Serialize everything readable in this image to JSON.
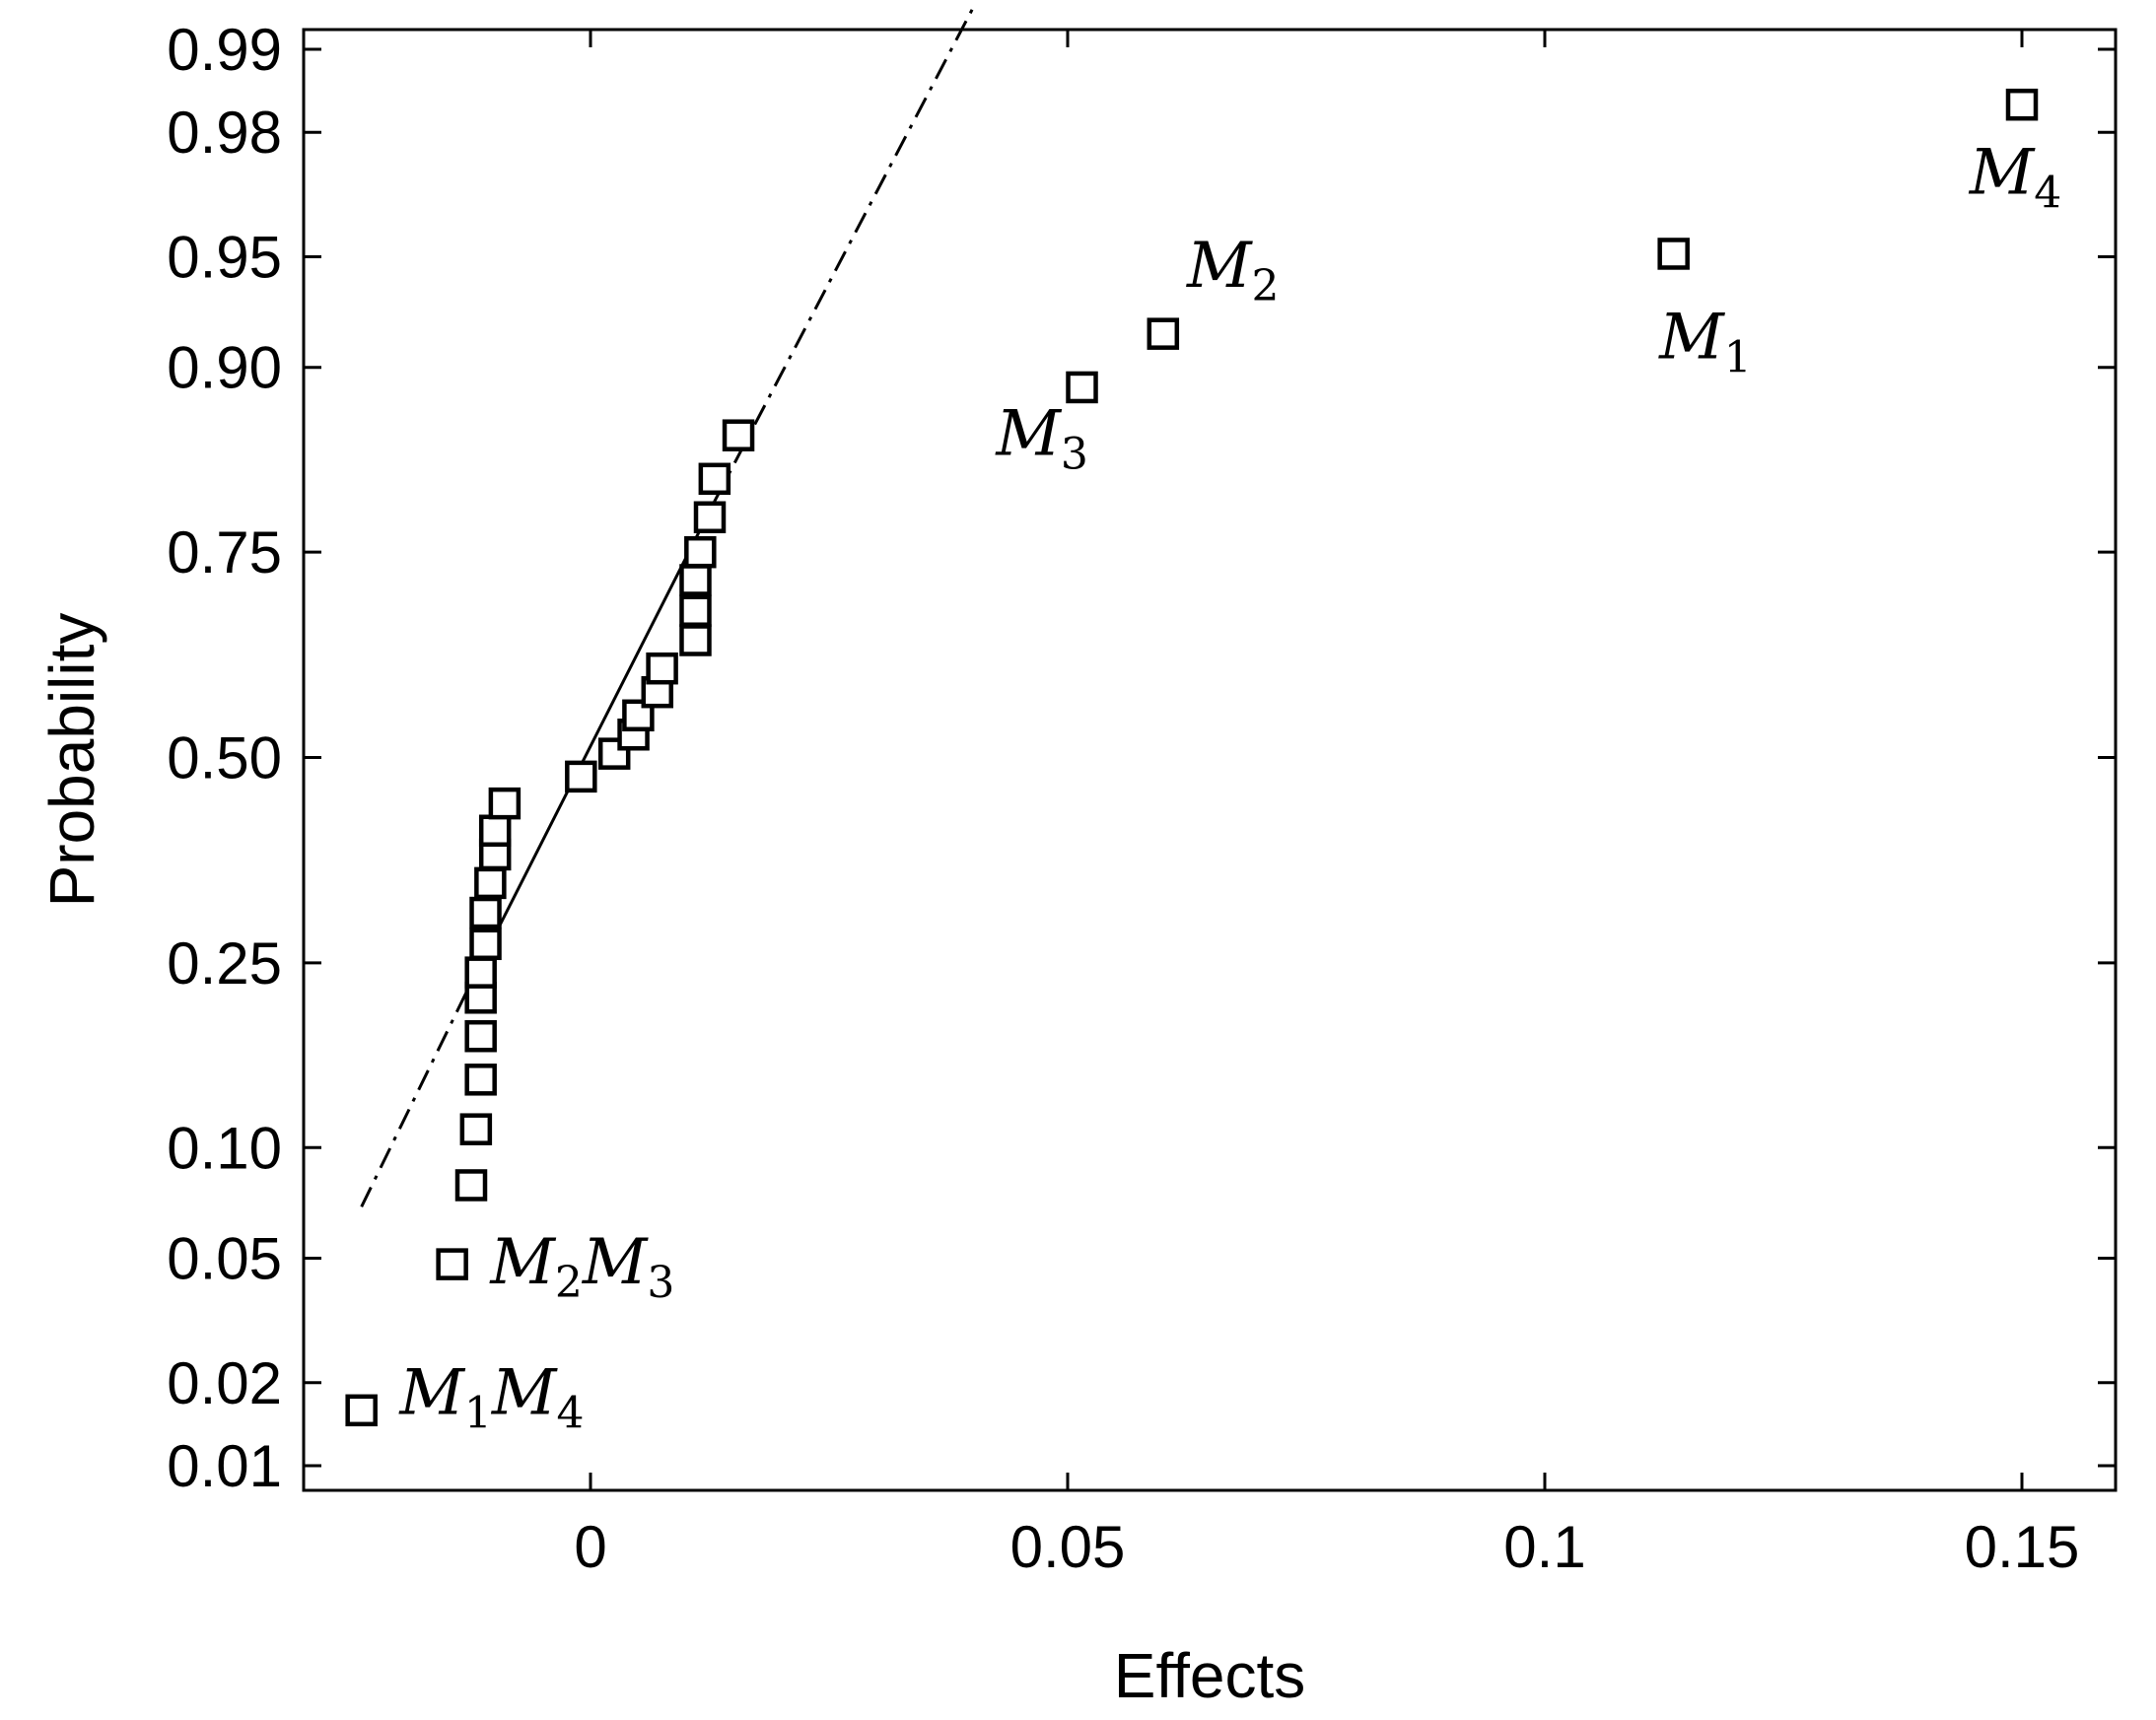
{
  "chart_data": {
    "type": "scatter",
    "title": "",
    "xlabel": "Effects",
    "ylabel": "Probability",
    "xlim": [
      -0.03,
      0.16
    ],
    "xticks": [
      0,
      0.05,
      0.1,
      0.15
    ],
    "xtick_labels": [
      "0",
      "0.05",
      "0.1",
      "0.15"
    ],
    "y_scale": "normal-probability",
    "yticks": [
      0.01,
      0.02,
      0.05,
      0.1,
      0.25,
      0.5,
      0.75,
      0.9,
      0.95,
      0.98,
      0.99
    ],
    "ytick_labels": [
      "0.01",
      "0.02",
      "0.05",
      "0.10",
      "0.25",
      "0.50",
      "0.75",
      "0.90",
      "0.95",
      "0.98",
      "0.99"
    ],
    "grid": false,
    "marker": "open-square",
    "series": [
      {
        "points": [
          {
            "x": -0.024,
            "y": 0.016
          },
          {
            "x": -0.0145,
            "y": 0.048
          },
          {
            "x": -0.0125,
            "y": 0.08
          },
          {
            "x": -0.012,
            "y": 0.111
          },
          {
            "x": -0.0115,
            "y": 0.145
          },
          {
            "x": -0.0115,
            "y": 0.18
          },
          {
            "x": -0.0115,
            "y": 0.215
          },
          {
            "x": -0.0115,
            "y": 0.24
          },
          {
            "x": -0.011,
            "y": 0.27
          },
          {
            "x": -0.011,
            "y": 0.305
          },
          {
            "x": -0.0105,
            "y": 0.34
          },
          {
            "x": -0.01,
            "y": 0.375
          },
          {
            "x": -0.01,
            "y": 0.405
          },
          {
            "x": -0.009,
            "y": 0.44
          },
          {
            "x": -0.001,
            "y": 0.475
          },
          {
            "x": 0.0025,
            "y": 0.505
          },
          {
            "x": 0.0045,
            "y": 0.53
          },
          {
            "x": 0.005,
            "y": 0.555
          },
          {
            "x": 0.007,
            "y": 0.585
          },
          {
            "x": 0.0075,
            "y": 0.615
          },
          {
            "x": 0.011,
            "y": 0.65
          },
          {
            "x": 0.011,
            "y": 0.685
          },
          {
            "x": 0.011,
            "y": 0.72
          },
          {
            "x": 0.0115,
            "y": 0.75
          },
          {
            "x": 0.0125,
            "y": 0.785
          },
          {
            "x": 0.013,
            "y": 0.82
          },
          {
            "x": 0.0155,
            "y": 0.855
          },
          {
            "x": 0.0515,
            "y": 0.888
          },
          {
            "x": 0.06,
            "y": 0.918
          },
          {
            "x": 0.1135,
            "y": 0.951
          },
          {
            "x": 0.15,
            "y": 0.984
          }
        ]
      }
    ],
    "fit_line": {
      "solid": [
        {
          "x": -0.0115,
          "y": 0.25
        },
        {
          "x": 0.013,
          "y": 0.8
        }
      ],
      "dashdot_lower": [
        {
          "x": -0.024,
          "y": 0.07
        },
        {
          "x": -0.0115,
          "y": 0.25
        }
      ],
      "dashdot_upper": [
        {
          "x": 0.013,
          "y": 0.8
        },
        {
          "x": 0.04,
          "y": 0.993
        }
      ]
    },
    "annotations": [
      {
        "base": "M",
        "sub": "4",
        "x": 0.1445,
        "y": 0.968
      },
      {
        "base": "M",
        "sub": "1",
        "x": 0.112,
        "y": 0.905
      },
      {
        "base": "M",
        "sub": "2",
        "x": 0.0625,
        "y": 0.939
      },
      {
        "base": "M",
        "sub": "3",
        "x": 0.0425,
        "y": 0.84
      },
      {
        "parts": [
          {
            "base": "M",
            "sub": "2"
          },
          {
            "base": "M",
            "sub": "3"
          }
        ],
        "x": -0.0105,
        "y": 0.042
      },
      {
        "parts": [
          {
            "base": "M",
            "sub": "1"
          },
          {
            "base": "M",
            "sub": "4"
          }
        ],
        "x": -0.02,
        "y": 0.0155
      }
    ]
  }
}
